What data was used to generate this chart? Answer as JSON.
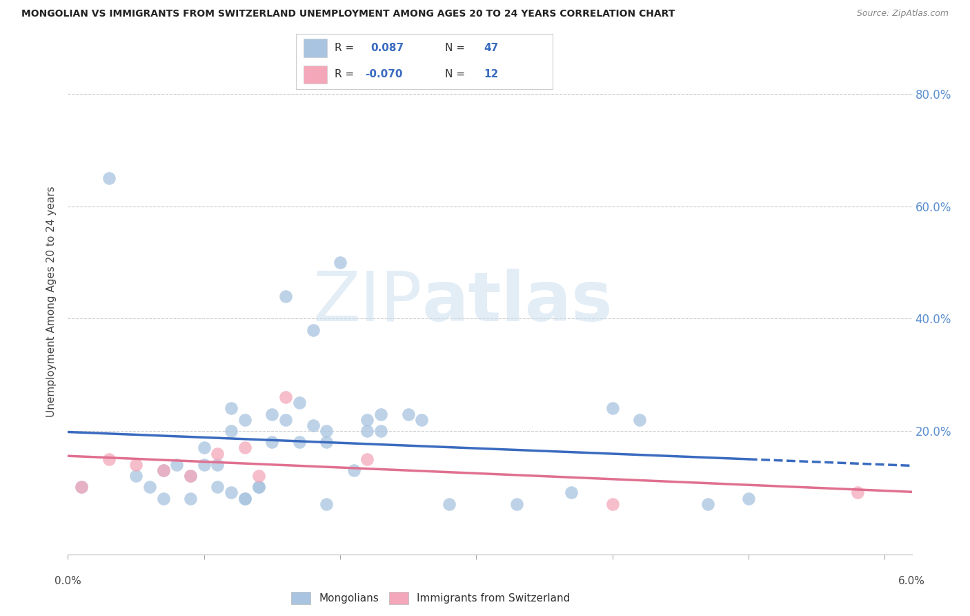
{
  "title": "MONGOLIAN VS IMMIGRANTS FROM SWITZERLAND UNEMPLOYMENT AMONG AGES 20 TO 24 YEARS CORRELATION CHART",
  "source": "Source: ZipAtlas.com",
  "ylabel": "Unemployment Among Ages 20 to 24 years",
  "mongolian_R": 0.087,
  "mongolian_N": 47,
  "swiss_R": -0.07,
  "swiss_N": 12,
  "mongolian_color": "#a8c4e0",
  "swiss_color": "#f4a7b9",
  "mongolian_line_color": "#3a6bbf",
  "swiss_line_color": "#e07090",
  "right_tick_color": "#5a8fd0",
  "mongolian_scatter_x": [
    0.001,
    0.003,
    0.005,
    0.006,
    0.007,
    0.007,
    0.008,
    0.009,
    0.009,
    0.01,
    0.01,
    0.011,
    0.011,
    0.012,
    0.012,
    0.012,
    0.013,
    0.013,
    0.013,
    0.014,
    0.014,
    0.015,
    0.015,
    0.016,
    0.016,
    0.017,
    0.017,
    0.018,
    0.018,
    0.019,
    0.019,
    0.019,
    0.02,
    0.021,
    0.022,
    0.022,
    0.023,
    0.023,
    0.025,
    0.026,
    0.028,
    0.033,
    0.037,
    0.04,
    0.042,
    0.047,
    0.05
  ],
  "mongolian_scatter_y": [
    0.1,
    0.65,
    0.12,
    0.1,
    0.13,
    0.08,
    0.14,
    0.12,
    0.08,
    0.17,
    0.14,
    0.14,
    0.1,
    0.24,
    0.2,
    0.09,
    0.22,
    0.08,
    0.08,
    0.1,
    0.1,
    0.23,
    0.18,
    0.44,
    0.22,
    0.25,
    0.18,
    0.38,
    0.21,
    0.2,
    0.18,
    0.07,
    0.5,
    0.13,
    0.2,
    0.22,
    0.23,
    0.2,
    0.23,
    0.22,
    0.07,
    0.07,
    0.09,
    0.24,
    0.22,
    0.07,
    0.08
  ],
  "swiss_scatter_x": [
    0.001,
    0.003,
    0.005,
    0.007,
    0.009,
    0.011,
    0.013,
    0.014,
    0.016,
    0.022,
    0.04,
    0.058
  ],
  "swiss_scatter_y": [
    0.1,
    0.15,
    0.14,
    0.13,
    0.12,
    0.16,
    0.17,
    0.12,
    0.26,
    0.15,
    0.07,
    0.09
  ],
  "xlim": [
    0.0,
    0.062
  ],
  "ylim": [
    -0.02,
    0.88
  ],
  "x_ticks": [
    0.0,
    0.01,
    0.02,
    0.03,
    0.04,
    0.05,
    0.06
  ],
  "y_ticks": [
    0.0,
    0.2,
    0.4,
    0.6,
    0.8
  ]
}
